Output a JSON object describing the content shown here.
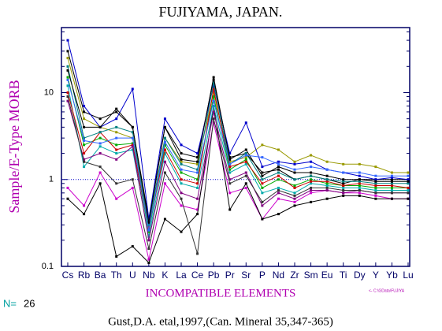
{
  "chart_data": {
    "type": "line",
    "title": "FUJIYAMA, JAPAN.",
    "y_label": "Sample/E-Type MORB",
    "x_label": "INCOMPATIBLE ELEMENTS",
    "n_label": "N=",
    "n": 26,
    "citation": "Gust,D.A. etal,1997,(Can. Mineral 35,347-365)",
    "file_note": "<- C:\\GData\\FUJIYA",
    "log_y": true,
    "reference_line": 1,
    "categories": [
      "Cs",
      "Rb",
      "Ba",
      "Th",
      "U",
      "Nb",
      "K",
      "La",
      "Ce",
      "Pb",
      "Pr",
      "Sr",
      "P",
      "Nd",
      "Zr",
      "Sm",
      "Eu",
      "Ti",
      "Dy",
      "Y",
      "Yb",
      "Lu"
    ],
    "ylim": [
      0.1,
      56
    ],
    "yticks": [
      0.1,
      1,
      10
    ],
    "yminor_ticks": [
      0.2,
      0.3,
      0.4,
      0.5,
      0.6,
      0.7,
      0.8,
      0.9,
      2,
      3,
      4,
      5,
      6,
      7,
      8,
      9,
      20,
      30,
      40,
      50
    ],
    "series": [
      {
        "color": "#000000",
        "values": [
          30,
          6,
          5,
          6,
          4,
          0.35,
          4,
          2,
          1.8,
          14,
          1.8,
          2,
          1.2,
          1.3,
          1,
          1.1,
          1,
          0.9,
          1,
          1,
          1,
          1
        ]
      },
      {
        "color": "#999900",
        "values": [
          25,
          5,
          4,
          3.5,
          3,
          0.3,
          3,
          1.6,
          1.5,
          10,
          1.6,
          1.8,
          2.5,
          2.2,
          1.6,
          1.9,
          1.6,
          1.5,
          1.5,
          1.4,
          1.2,
          1.2
        ]
      },
      {
        "color": "#0000cc",
        "values": [
          40,
          7,
          4,
          5,
          11,
          0.35,
          5,
          2.5,
          2,
          12,
          2,
          4.5,
          1.4,
          1.6,
          1.5,
          1.6,
          1.3,
          1.2,
          1.1,
          1,
          1.05,
          1
        ]
      },
      {
        "color": "#cc00cc",
        "values": [
          0.8,
          0.5,
          1.2,
          0.6,
          0.8,
          0.12,
          0.9,
          0.5,
          0.45,
          4.5,
          0.7,
          0.8,
          0.35,
          0.6,
          0.55,
          0.7,
          0.75,
          0.7,
          0.7,
          0.65,
          0.6,
          0.6
        ]
      },
      {
        "color": "#000000",
        "values": [
          0.6,
          0.4,
          0.9,
          0.13,
          0.17,
          0.11,
          0.35,
          0.25,
          0.4,
          7,
          0.45,
          0.9,
          0.35,
          0.4,
          0.5,
          0.55,
          0.6,
          0.65,
          0.65,
          0.6,
          0.6,
          0.6
        ]
      },
      {
        "color": "#00aaaa",
        "values": [
          12,
          1.4,
          2.4,
          2,
          2.2,
          0.22,
          2,
          0.9,
          0.8,
          7,
          1.2,
          1.5,
          0.7,
          0.8,
          0.7,
          0.9,
          0.85,
          0.8,
          0.8,
          0.75,
          0.75,
          0.75
        ]
      },
      {
        "color": "#00aa00",
        "values": [
          15,
          2.5,
          3,
          2.5,
          2.6,
          0.25,
          2.5,
          1.2,
          1,
          9,
          1.3,
          1.7,
          0.8,
          1,
          0.85,
          1,
          0.9,
          0.85,
          0.85,
          0.8,
          0.8,
          0.8
        ]
      },
      {
        "color": "#cc0000",
        "values": [
          10,
          2,
          3.5,
          2.2,
          2.5,
          0.28,
          2.2,
          1,
          0.9,
          11,
          1.4,
          1.6,
          0.9,
          1.1,
          0.8,
          0.95,
          0.95,
          0.85,
          0.9,
          0.85,
          0.85,
          0.8
        ]
      },
      {
        "color": "#008080",
        "values": [
          20,
          3,
          3.5,
          4,
          3.5,
          0.3,
          3,
          1.5,
          1.3,
          13,
          1.5,
          2,
          1,
          1.2,
          1,
          1.1,
          1,
          0.95,
          0.95,
          0.9,
          0.9,
          0.9
        ]
      },
      {
        "color": "#000000",
        "values": [
          18,
          4,
          4,
          6.5,
          4,
          0.32,
          4,
          1.7,
          1.6,
          15,
          1.7,
          2.2,
          1.1,
          1.4,
          1.2,
          1.2,
          1.1,
          1,
          1,
          0.95,
          0.95,
          0.95
        ]
      },
      {
        "color": "#800080",
        "values": [
          8,
          1.7,
          2,
          1.7,
          2.4,
          0.2,
          1.6,
          0.7,
          0.6,
          6,
          1,
          1.2,
          0.5,
          0.7,
          0.6,
          0.75,
          0.75,
          0.7,
          0.75,
          0.7,
          0.7,
          0.7
        ]
      },
      {
        "color": "#3366ff",
        "values": [
          14,
          2.8,
          2.6,
          3,
          3,
          0.26,
          2.7,
          1.3,
          1.2,
          8,
          1.5,
          1.9,
          1.8,
          1.5,
          1.3,
          1.4,
          1.3,
          1.2,
          1.2,
          1.1,
          1.1,
          1.1
        ]
      },
      {
        "color": "#333333",
        "values": [
          9,
          1.6,
          1.4,
          0.9,
          1,
          0.16,
          1.2,
          0.6,
          0.14,
          5,
          0.9,
          1.1,
          0.55,
          0.75,
          0.65,
          0.8,
          0.8,
          0.75,
          0.75,
          0.7,
          0.7,
          0.7
        ]
      }
    ]
  }
}
